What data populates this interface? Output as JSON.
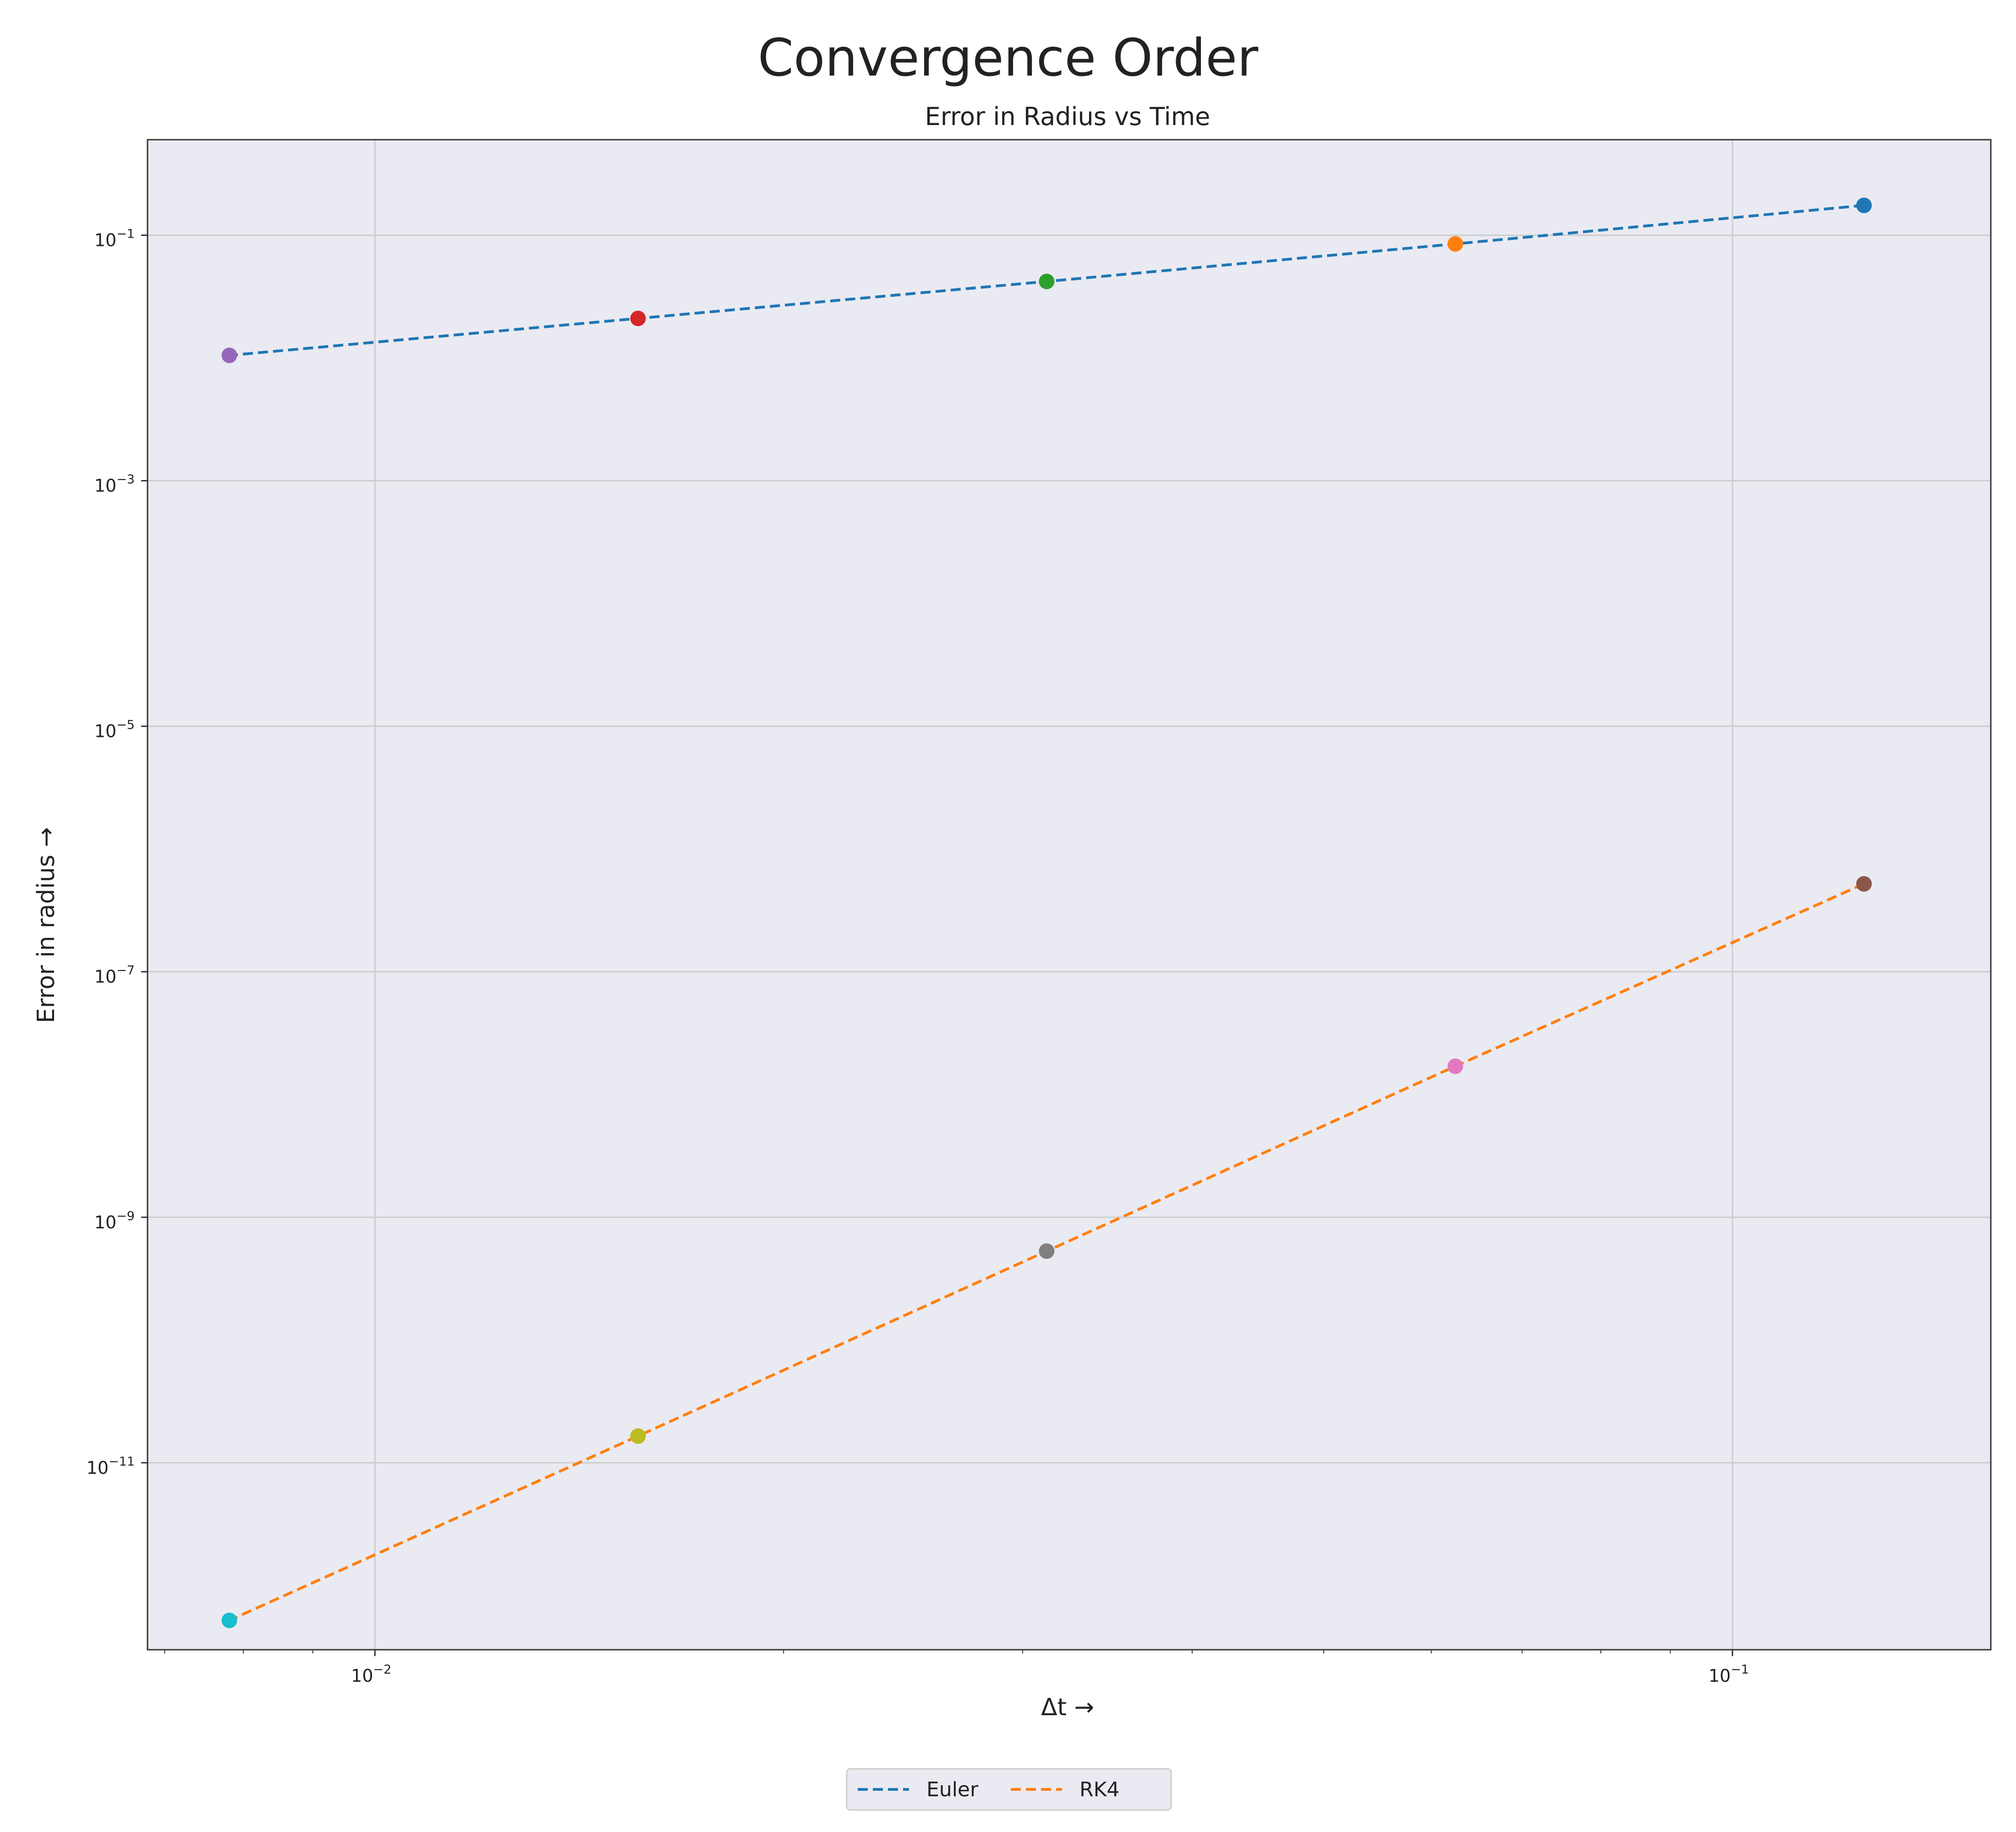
{
  "chart_data": {
    "type": "line",
    "title": "Convergence Order",
    "subtitle": "Error in Radius vs Time",
    "xlabel": "Δt →",
    "ylabel": "Error in radius →",
    "xscale": "log",
    "yscale": "log",
    "xlim": [
      0.0068,
      0.155
    ],
    "ylim": [
      3e-13,
      0.6
    ],
    "grid": true,
    "legend": {
      "position": "bottom-center",
      "entries": [
        "Euler",
        "RK4"
      ]
    },
    "x_ticks": [
      {
        "base": "10",
        "exp": "−2",
        "value": 0.01
      },
      {
        "base": "10",
        "exp": "−1",
        "value": 0.1
      }
    ],
    "y_ticks": [
      {
        "base": "10",
        "exp": "−1",
        "value": 0.1
      },
      {
        "base": "10",
        "exp": "−3",
        "value": 0.001
      },
      {
        "base": "10",
        "exp": "−5",
        "value": 1e-05
      },
      {
        "base": "10",
        "exp": "−7",
        "value": 1e-07
      },
      {
        "base": "10",
        "exp": "−9",
        "value": 1e-09
      },
      {
        "base": "10",
        "exp": "−11",
        "value": 1e-11
      }
    ],
    "series": [
      {
        "name": "Euler",
        "color": "#1f77b4",
        "x": [
          0.125,
          0.0625,
          0.03125,
          0.015625,
          0.0078125
        ],
        "y": [
          0.175,
          0.085,
          0.042,
          0.021,
          0.0105
        ],
        "marker_colors": [
          "#1f77b4",
          "#ff7f0e",
          "#2ca02c",
          "#d62728",
          "#9467bd"
        ]
      },
      {
        "name": "RK4",
        "color": "#ff7f0e",
        "x": [
          0.125,
          0.0625,
          0.03125,
          0.015625,
          0.0078125
        ],
        "y": [
          5.2e-07,
          1.7e-08,
          5.3e-10,
          1.65e-11,
          5.2e-13
        ],
        "marker_colors": [
          "#8c564b",
          "#e377c2",
          "#7f7f7f",
          "#bcbd22",
          "#17becf"
        ]
      }
    ]
  },
  "colors": {
    "plot_background": "#eaeaf2",
    "grid": "#cccccc",
    "axes_edge": "#333333"
  }
}
